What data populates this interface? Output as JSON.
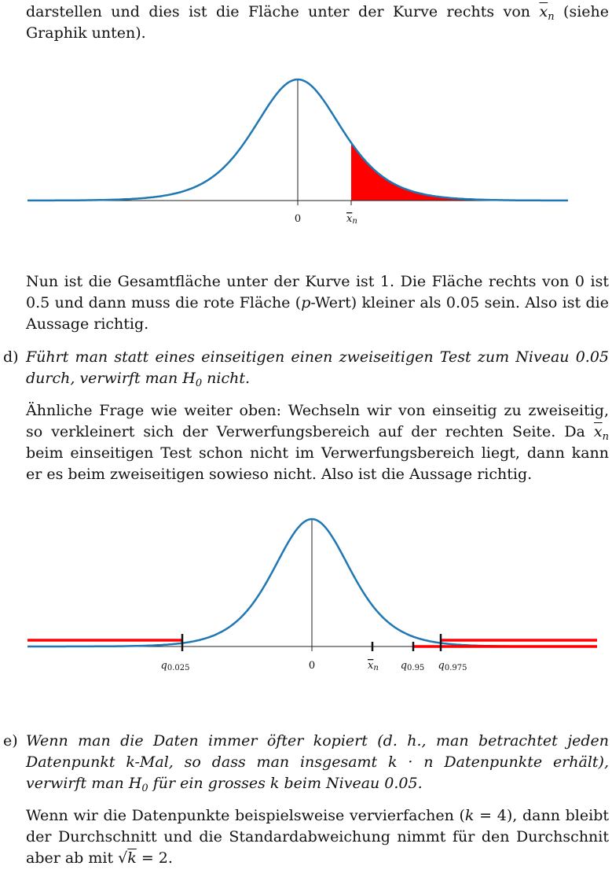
{
  "text": {
    "top_para_a": "darstellen und dies ist die Fläche unter der Kurve rechts von ",
    "top_para_xbar": "x",
    "top_para_sub": "n",
    "top_para_b": " (siehe Graphik unten).",
    "nun_para_a": "Nun ist die Gesamtfläche unter der Kurve ist 1. Die Fläche rechts von 0 ist 0.5 und dann muss die rote Fläche (",
    "nun_para_p": "p",
    "nun_para_b": "-Wert) kleiner als 0.05 sein. Also ist die Aussage richtig.",
    "d_label": "d)",
    "d_statement_a": "Führt man statt eines einseitigen einen zweiseitigen Test zum Niveau 0.05 durch, verwirft man H",
    "d_statement_sub": "0",
    "d_statement_b": " nicht.",
    "aehn_para_a": "Ähnliche Frage wie weiter oben: Wechseln wir von einseitig zu zweiseitig, so verkleinert sich der Verwerfungsbereich auf der rechten Seite. Da ",
    "aehn_para_xbar": "x",
    "aehn_para_sub": "n",
    "aehn_para_b": " beim einseitigen Test schon nicht im Verwerfungsbereich liegt, dann kann er es beim zweiseitigen sowieso nicht. Also ist die Aussage richtig.",
    "e_label": "e)",
    "e_statement_a": "Wenn man die Daten immer öfter kopiert (d. h., man betrachtet jeden Datenpunkt k-Mal, so dass man insgesamt k · n Datenpunkte erhält), verwirft man H",
    "e_statement_sub": "0",
    "e_statement_b": " für ein grosses k beim Niveau 0.05.",
    "wenn_para_a": "Wenn wir die Datenpunkte beispielsweise vervierfachen (",
    "wenn_para_k": "k",
    "wenn_para_b": " = 4), dann bleibt der Durchschnitt und die Standardabweichung nimmt für den Durchschnit aber ab mit √",
    "wenn_para_sqrtk": "k",
    "wenn_para_c": " = 2."
  },
  "figure1": {
    "tick_zero": "0",
    "tick_xbar": "x",
    "tick_xbar_sub": "n",
    "curve_color": "#1f77b4",
    "fill_color": "#ff0000",
    "axis_color": "#222222"
  },
  "figure2": {
    "tick_q025": "q",
    "tick_q025_sub": "0.025",
    "tick_zero": "0",
    "tick_xbar": "x",
    "tick_xbar_sub": "n",
    "tick_q95": "q",
    "tick_q95_sub": "0.95",
    "tick_q975": "q",
    "tick_q975_sub": "0.975",
    "curve_color": "#1f77b4",
    "reject_color": "#ff0000"
  }
}
